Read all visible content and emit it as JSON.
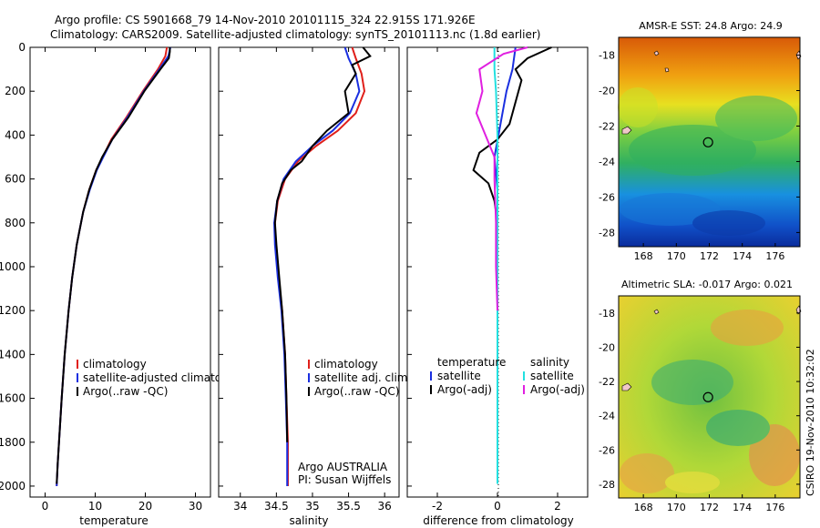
{
  "header": {
    "line1": "Argo profile: CS 5901668_79 14-Nov-2010 20101115_324 22.915S 171.926E",
    "line2": "Climatology: CARS2009. Satellite-adjusted climatology: synTS_20101113.nc (1.8d earlier)"
  },
  "footer_stamp": "CSIRO 19-Nov-2010 10:32:02",
  "colors": {
    "climatology": "#e0201b",
    "satellite": "#1a2fe0",
    "argo": "#000000",
    "sat_cyan": "#22e0e0",
    "argo_magenta": "#e020e0"
  },
  "chart_data": [
    {
      "type": "line",
      "title": "",
      "xlabel": "temperature",
      "ylabel": "",
      "xlim": [
        -3,
        33
      ],
      "ylim": [
        0,
        2050
      ],
      "xticks": [
        "0",
        "10",
        "20",
        "30"
      ],
      "xtick_values": [
        0,
        10,
        20,
        30
      ],
      "yticks": [
        "0",
        "200",
        "400",
        "600",
        "800",
        "1000",
        "1200",
        "1400",
        "1600",
        "1800",
        "2000"
      ],
      "ytick_values": [
        0,
        200,
        400,
        600,
        800,
        1000,
        1200,
        1400,
        1600,
        1800,
        2000
      ],
      "legend": [
        "climatology",
        "satellite-adjusted climatology",
        "Argo(..raw -QC)"
      ],
      "series": [
        {
          "name": "climatology",
          "color": "#e0201b",
          "x": [
            24.3,
            24.0,
            22.5,
            19.5,
            16.2,
            13.2,
            11.5,
            10.2,
            8.8,
            7.6,
            6.3,
            5.4,
            4.7,
            3.9,
            3.3,
            2.9,
            2.5,
            2.3
          ],
          "y": [
            0,
            40,
            100,
            200,
            320,
            420,
            500,
            560,
            650,
            750,
            900,
            1050,
            1200,
            1400,
            1600,
            1750,
            1900,
            2000
          ]
        },
        {
          "name": "satellite-adjusted climatology",
          "color": "#1a2fe0",
          "x": [
            25.0,
            24.6,
            22.8,
            19.7,
            16.4,
            13.4,
            11.6,
            10.3,
            8.9,
            7.6,
            6.3,
            5.4,
            4.7,
            3.9,
            3.3,
            2.9,
            2.5,
            2.3
          ],
          "y": [
            0,
            40,
            100,
            200,
            320,
            420,
            500,
            560,
            650,
            750,
            900,
            1050,
            1200,
            1400,
            1600,
            1750,
            1900,
            2000
          ]
        },
        {
          "name": "Argo(..raw -QC)",
          "color": "#000000",
          "x": [
            24.9,
            24.9,
            24.7,
            23.0,
            19.8,
            16.6,
            13.4,
            11.4,
            10.2,
            8.8,
            7.6,
            6.3,
            5.4,
            4.7,
            3.9,
            3.3,
            2.9,
            2.5,
            2.3
          ],
          "y": [
            0,
            20,
            50,
            100,
            200,
            320,
            420,
            500,
            560,
            650,
            750,
            900,
            1050,
            1200,
            1400,
            1600,
            1750,
            1900,
            1990
          ]
        }
      ]
    },
    {
      "type": "line",
      "title": "",
      "xlabel": "salinity",
      "ylabel": "",
      "xlim": [
        33.7,
        36.2
      ],
      "ylim": [
        0,
        2050
      ],
      "xticks": [
        "34",
        "34.5",
        "35",
        "35.5",
        "36"
      ],
      "xtick_values": [
        34,
        34.5,
        35,
        35.5,
        36
      ],
      "annotation": [
        "Argo AUSTRALIA",
        "PI: Susan Wijffels"
      ],
      "legend": [
        "climatology",
        "satellite adj. clim.",
        "Argo(..raw -QC)"
      ],
      "series": [
        {
          "name": "climatology",
          "color": "#e0201b",
          "x": [
            35.55,
            35.6,
            35.68,
            35.72,
            35.6,
            35.35,
            35.05,
            34.8,
            34.62,
            34.52,
            34.48,
            34.49,
            34.53,
            34.58,
            34.62,
            34.64,
            34.66,
            34.66
          ],
          "y": [
            0,
            50,
            120,
            200,
            300,
            380,
            450,
            520,
            600,
            700,
            800,
            900,
            1050,
            1200,
            1400,
            1600,
            1800,
            2000
          ]
        },
        {
          "name": "satellite adj. clim.",
          "color": "#1a2fe0",
          "x": [
            35.45,
            35.5,
            35.6,
            35.65,
            35.52,
            35.28,
            35.0,
            34.77,
            34.6,
            34.51,
            34.47,
            34.48,
            34.52,
            34.57,
            34.61,
            34.63,
            34.65,
            34.65
          ],
          "y": [
            0,
            50,
            120,
            200,
            300,
            380,
            450,
            520,
            600,
            700,
            800,
            900,
            1050,
            1200,
            1400,
            1600,
            1800,
            2000
          ]
        },
        {
          "name": "Argo(..raw -QC)",
          "color": "#000000",
          "x": [
            35.7,
            35.8,
            35.55,
            35.6,
            35.45,
            35.5,
            35.2,
            35.0,
            34.85,
            34.7,
            34.58,
            34.51,
            34.48,
            34.5,
            34.54,
            34.58,
            34.62,
            34.64,
            34.65
          ],
          "y": [
            0,
            40,
            80,
            120,
            200,
            300,
            380,
            450,
            520,
            560,
            620,
            700,
            800,
            900,
            1050,
            1200,
            1400,
            1600,
            1800
          ]
        }
      ]
    },
    {
      "type": "line",
      "title": "",
      "xlabel": "difference from climatology",
      "ylabel": "",
      "xlim": [
        -3,
        3
      ],
      "ylim": [
        0,
        2050
      ],
      "xticks": [
        "-2",
        "0",
        "2"
      ],
      "xtick_values": [
        -2,
        0,
        2
      ],
      "legend_groups": [
        {
          "title": "temperature",
          "entries": [
            "satellite",
            "Argo(-adj)"
          ]
        },
        {
          "title": "salinity",
          "entries": [
            "satellite",
            "Argo(-adj)"
          ]
        }
      ],
      "series": [
        {
          "name": "temperature satellite",
          "color": "#1a2fe0",
          "x": [
            0.6,
            0.5,
            0.3,
            0.1,
            -0.1,
            0.0,
            0.0,
            0.0,
            0.0,
            0.0,
            0.0
          ],
          "y": [
            0,
            100,
            200,
            350,
            500,
            650,
            800,
            1000,
            1200,
            1500,
            1990
          ]
        },
        {
          "name": "temperature Argo(-adj)",
          "color": "#000000",
          "x": [
            1.8,
            1.0,
            0.6,
            0.8,
            0.6,
            0.4,
            0.0,
            -0.6,
            -0.8,
            -0.3,
            -0.1,
            0.0,
            0.0
          ],
          "y": [
            0,
            50,
            100,
            150,
            250,
            350,
            420,
            480,
            560,
            620,
            700,
            800,
            900
          ]
        },
        {
          "name": "salinity satellite",
          "color": "#22e0e0",
          "x": [
            -0.1,
            -0.1,
            -0.05,
            0.0,
            0.0,
            0.0,
            0.0,
            0.0,
            0.0
          ],
          "y": [
            0,
            100,
            200,
            400,
            600,
            800,
            1200,
            1600,
            1990
          ]
        },
        {
          "name": "salinity Argo(-adj)",
          "color": "#e020e0",
          "x": [
            1.0,
            0.2,
            -0.6,
            -0.5,
            -0.7,
            -0.4,
            -0.1,
            -0.1,
            -0.05,
            -0.05,
            0.0
          ],
          "y": [
            0,
            30,
            100,
            200,
            300,
            400,
            500,
            600,
            800,
            1000,
            1200
          ]
        }
      ]
    },
    {
      "type": "heatmap",
      "title": "AMSR-E SST: 24.8 Argo: 24.9",
      "xlim": [
        166.5,
        177.5
      ],
      "ylim": [
        -28.8,
        -17
      ],
      "xticks": [
        "168",
        "170",
        "172",
        "174",
        "176"
      ],
      "xtick_values": [
        168,
        170,
        172,
        174,
        176
      ],
      "yticks": [
        "-18",
        "-20",
        "-22",
        "-24",
        "-26",
        "-28"
      ],
      "ytick_values": [
        -18,
        -20,
        -22,
        -24,
        -26,
        -28
      ],
      "marker": {
        "lon": 171.926,
        "lat": -22.915
      }
    },
    {
      "type": "heatmap",
      "title": "Altimetric SLA: -0.017 Argo: 0.021",
      "xlim": [
        166.5,
        177.5
      ],
      "ylim": [
        -28.8,
        -17
      ],
      "xticks": [
        "168",
        "170",
        "172",
        "174",
        "176"
      ],
      "xtick_values": [
        168,
        170,
        172,
        174,
        176
      ],
      "yticks": [
        "-18",
        "-20",
        "-22",
        "-24",
        "-26",
        "-28"
      ],
      "ytick_values": [
        -18,
        -20,
        -22,
        -24,
        -26,
        -28
      ],
      "marker": {
        "lon": 171.926,
        "lat": -22.915
      }
    }
  ]
}
